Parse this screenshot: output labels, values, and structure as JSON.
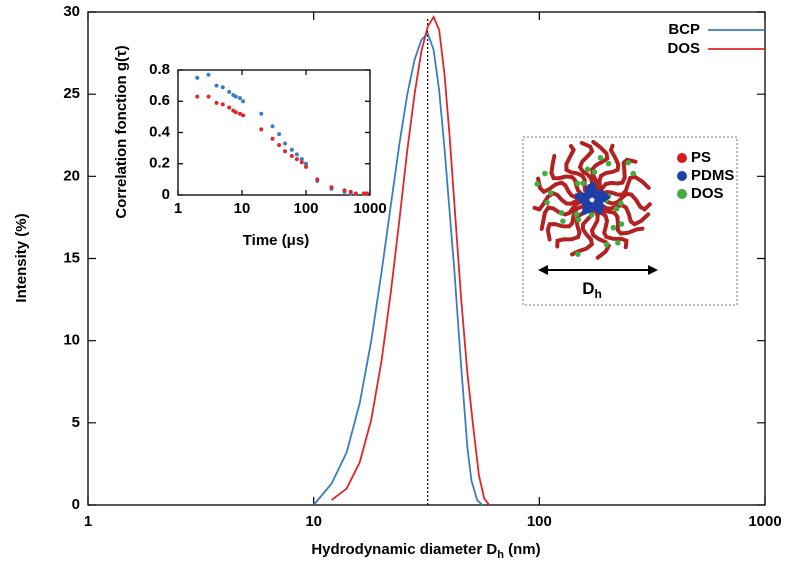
{
  "chart_data": [
    {
      "type": "line",
      "x_label": [
        "Hydrodynamic diameter D",
        "h",
        " (nm)"
      ],
      "y_label": "Intensity (%)",
      "log_x": true,
      "xlim": [
        1,
        1000
      ],
      "xticks": [
        1,
        10,
        100,
        1000
      ],
      "ylim": [
        0,
        30
      ],
      "yticks": [
        0,
        5,
        10,
        15,
        20,
        25,
        30
      ],
      "reference_line": {
        "x": 32
      },
      "series": [
        {
          "name": "BCP",
          "color": "#3b7ebf",
          "x": [
            10,
            12,
            14,
            16,
            18,
            20,
            22,
            24,
            26,
            28,
            30,
            32,
            34,
            36,
            38,
            40,
            42,
            45,
            48,
            50,
            53,
            56
          ],
          "values": [
            0,
            1.3,
            3.2,
            6.2,
            10,
            14.2,
            18.3,
            22,
            25,
            27.1,
            28.3,
            28.7,
            27.7,
            25.2,
            21.7,
            17.9,
            14.3,
            8.5,
            3.5,
            1.5,
            0.3,
            0
          ]
        },
        {
          "name": "DOS",
          "color": "#e0262a",
          "x": [
            12,
            14,
            16,
            18,
            20,
            22,
            24,
            26,
            28,
            30,
            32,
            34,
            36,
            38,
            40,
            42,
            45,
            48,
            51,
            54,
            57,
            60
          ],
          "values": [
            0.3,
            1,
            2.6,
            5.2,
            8.8,
            13,
            17.4,
            21.6,
            25,
            27.6,
            29.1,
            29.7,
            28.9,
            26.2,
            22.5,
            18.4,
            12.6,
            8,
            4.7,
            1.8,
            0.4,
            0
          ]
        }
      ]
    },
    {
      "type": "scatter",
      "x_label": "Time (μs)",
      "y_label": "Correlation fonction g(τ)",
      "log_x": true,
      "xlim": [
        1,
        1000
      ],
      "xticks": [
        1,
        10,
        100,
        1000
      ],
      "ylim": [
        0,
        0.8
      ],
      "yticks": [
        0,
        0.2,
        0.4,
        0.6,
        0.8
      ],
      "x": [
        2,
        3,
        4,
        5,
        6.3,
        7.3,
        8,
        9.3,
        10.4,
        20,
        30,
        38,
        47,
        60,
        72,
        86,
        100,
        150,
        250,
        400,
        500,
        600,
        800,
        900
      ],
      "series": [
        {
          "name": "BCP",
          "color": "#3b7ebf",
          "values": [
            0.75,
            0.77,
            0.7,
            0.69,
            0.66,
            0.64,
            0.63,
            0.62,
            0.6,
            0.52,
            0.44,
            0.39,
            0.33,
            0.29,
            0.26,
            0.23,
            0.2,
            0.09,
            0.04,
            0.02,
            0.01,
            0.01,
            0.01,
            0.01
          ]
        },
        {
          "name": "DOS",
          "color": "#e0262a",
          "values": [
            0.63,
            0.63,
            0.59,
            0.58,
            0.56,
            0.54,
            0.53,
            0.52,
            0.51,
            0.42,
            0.36,
            0.32,
            0.28,
            0.25,
            0.23,
            0.21,
            0.18,
            0.1,
            0.05,
            0.03,
            0.02,
            0.01,
            0.01,
            0.01
          ]
        }
      ]
    }
  ],
  "diagram": {
    "legend": [
      {
        "label": "PS",
        "color": "#d7191c"
      },
      {
        "label": "PDMS",
        "color": "#1f3fa8"
      },
      {
        "label": "DOS",
        "color": "#3fae3f"
      }
    ],
    "dimension": [
      "D",
      "h"
    ]
  }
}
